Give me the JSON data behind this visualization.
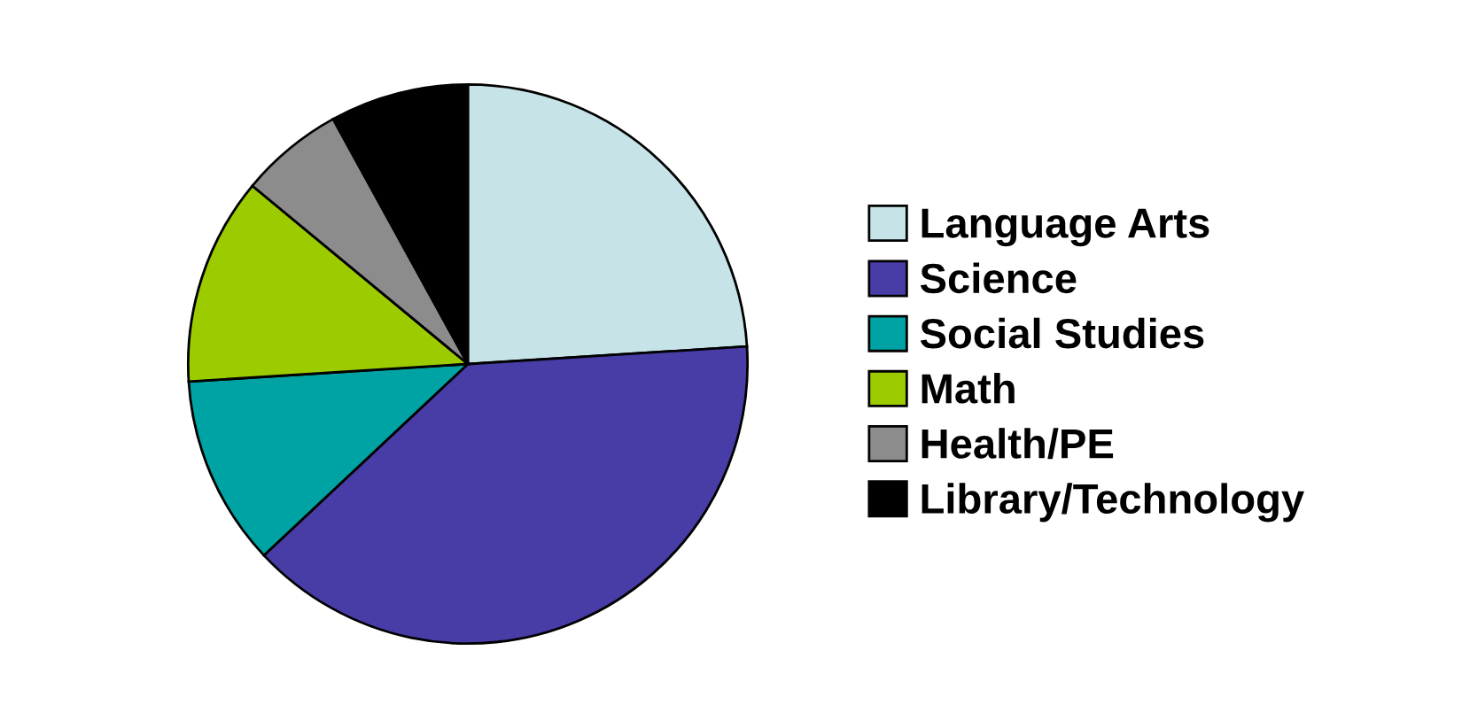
{
  "chart_data": {
    "type": "pie",
    "categories": [
      "Language Arts",
      "Science",
      "Social Studies",
      "Math",
      "Health/PE",
      "Library/Technology"
    ],
    "values": [
      24,
      39,
      11,
      12,
      6,
      8
    ],
    "colors": [
      "#c6e4e8",
      "#483ca6",
      "#00a3a3",
      "#9ccc00",
      "#8c8c8c",
      "#000000"
    ],
    "legend": "right"
  }
}
